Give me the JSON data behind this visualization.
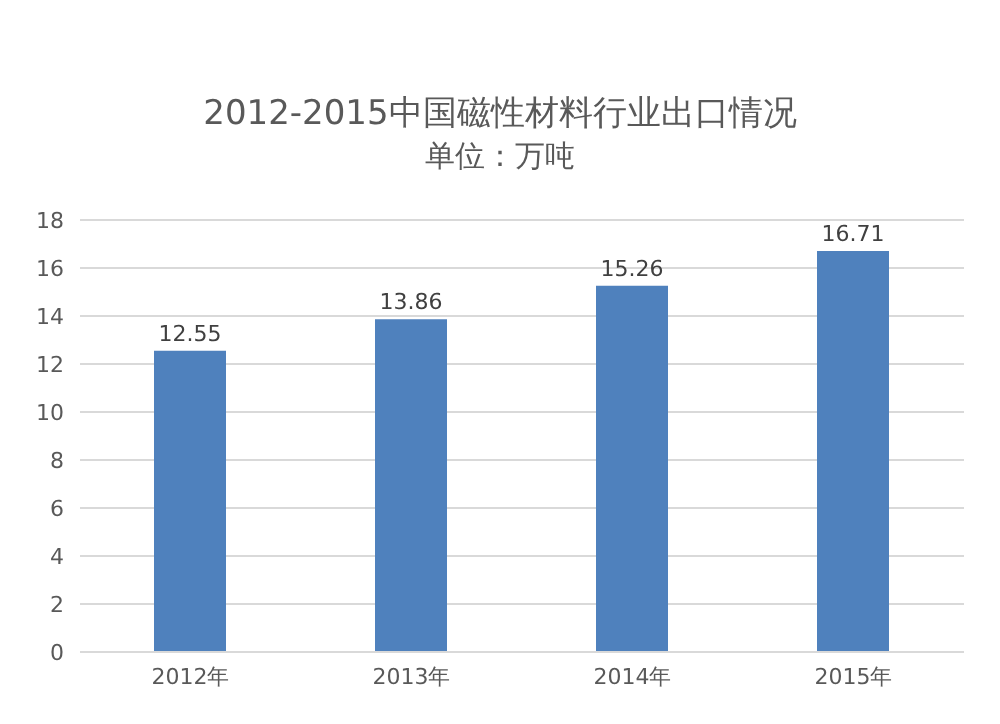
{
  "chart_data": {
    "type": "bar",
    "title": "2012-2015中国磁性材料行业出口情况",
    "subtitle": "单位：万吨",
    "categories": [
      "2012年",
      "2013年",
      "2014年",
      "2015年"
    ],
    "values": [
      12.55,
      13.86,
      15.26,
      16.71
    ],
    "color": "#4f81bd",
    "ylim": [
      0,
      18
    ],
    "yticks": [
      0,
      2,
      4,
      6,
      8,
      10,
      12,
      14,
      16,
      18
    ],
    "grid": "y",
    "data_labels": true
  }
}
